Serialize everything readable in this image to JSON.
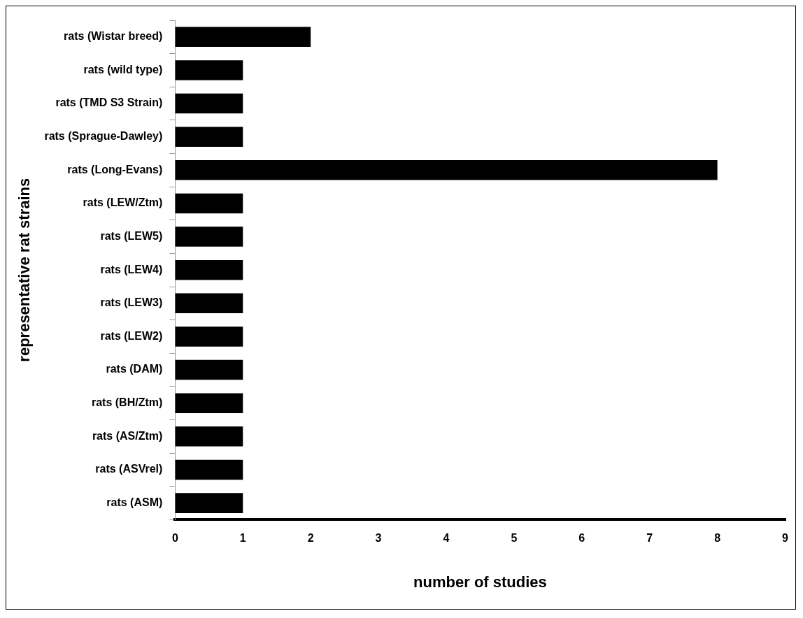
{
  "chart_data": {
    "type": "bar",
    "orientation": "horizontal",
    "xlabel": "number of studies",
    "ylabel": "representative rat strains",
    "categories": [
      "rats (Wistar breed)",
      "rats (wild type)",
      "rats (TMD S3 Strain)",
      "rats (Sprague-Dawley)",
      "rats (Long-Evans)",
      "rats (LEW/Ztm)",
      "rats (LEW5)",
      "rats (LEW4)",
      "rats (LEW3)",
      "rats (LEW2)",
      "rats (DAM)",
      "rats (BH/Ztm)",
      "rats (AS/Ztm)",
      "rats (ASVrel)",
      "rats (ASM)"
    ],
    "values": [
      2,
      1,
      1,
      1,
      8,
      1,
      1,
      1,
      1,
      1,
      1,
      1,
      1,
      1,
      1
    ],
    "color": "#000000",
    "xlim": [
      0,
      9
    ],
    "xticks": [
      0,
      1,
      2,
      3,
      4,
      5,
      6,
      7,
      8,
      9
    ]
  }
}
